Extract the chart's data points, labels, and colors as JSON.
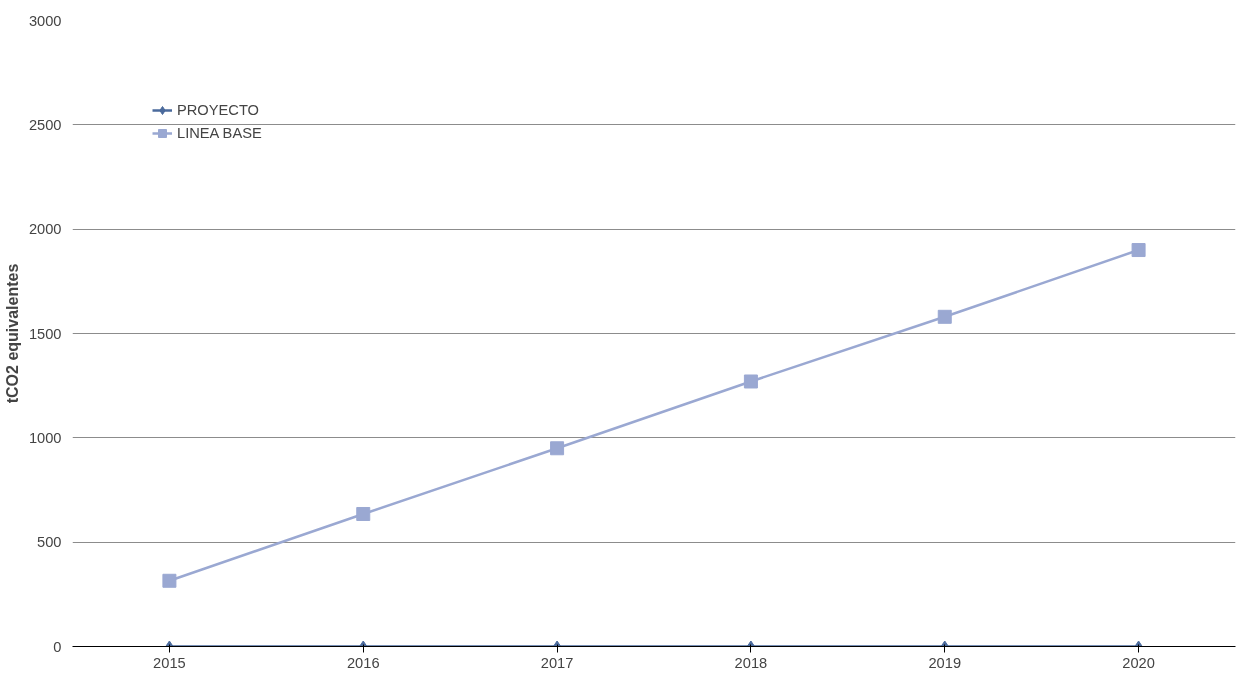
{
  "chart_data": {
    "type": "line",
    "ylabel": "tCO2 equivalentes",
    "categories": [
      "2015",
      "2016",
      "2017",
      "2018",
      "2019",
      "2020"
    ],
    "series": [
      {
        "name": "PROYECTO",
        "color": "#4a6a9c",
        "marker": "diamond",
        "values": [
          0,
          0,
          0,
          0,
          0,
          0
        ]
      },
      {
        "name": "LINEA BASE",
        "color": "#9aa8d2",
        "marker": "square",
        "values": [
          315,
          635,
          950,
          1270,
          1580,
          1900
        ]
      }
    ],
    "ylim": [
      0,
      3000
    ],
    "yticks": [
      0,
      500,
      1000,
      1500,
      2000,
      2500,
      3000
    ],
    "grid": "y",
    "legend": "top left",
    "line_style": "solid"
  }
}
